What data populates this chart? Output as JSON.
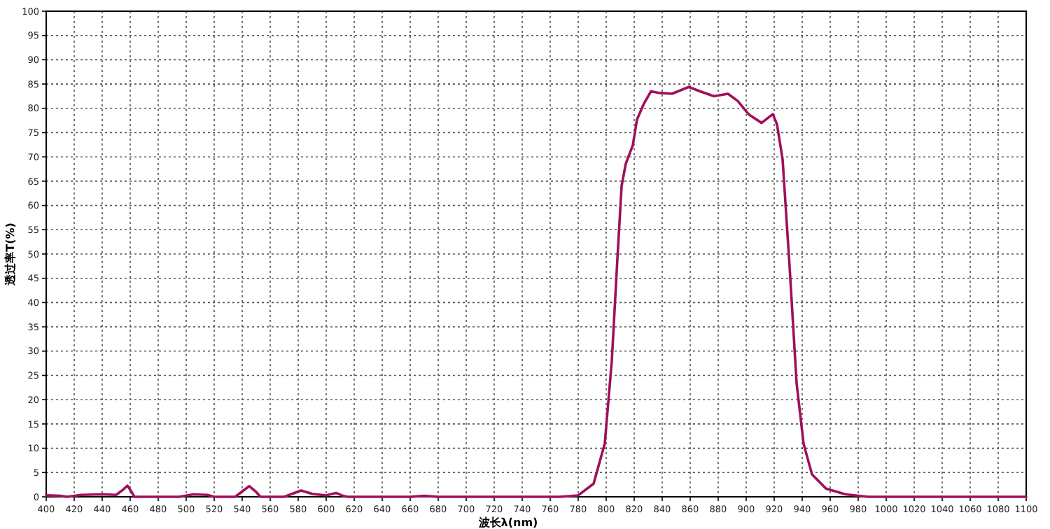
{
  "chart_data": {
    "type": "line",
    "xlabel": "波长λ(nm)",
    "ylabel": "透过率T(%)",
    "xlim": [
      400,
      1100
    ],
    "ylim": [
      0,
      100
    ],
    "xticks": [
      400,
      420,
      440,
      460,
      480,
      500,
      520,
      540,
      560,
      580,
      600,
      620,
      640,
      660,
      680,
      700,
      720,
      740,
      760,
      780,
      800,
      820,
      840,
      860,
      880,
      900,
      920,
      940,
      960,
      980,
      1000,
      1020,
      1040,
      1060,
      1080,
      1100
    ],
    "yticks": [
      0,
      5,
      10,
      15,
      20,
      25,
      30,
      35,
      40,
      45,
      50,
      55,
      60,
      65,
      70,
      75,
      80,
      85,
      90,
      95,
      100
    ],
    "grid": true,
    "marker": "none",
    "line_style": "solid",
    "series": [
      {
        "color": "#a0105a",
        "x": [
          400,
          410,
          415,
          425,
          440,
          450,
          455,
          458,
          461,
          463,
          495,
          505,
          515,
          520,
          535,
          545,
          550,
          553,
          570,
          582,
          590,
          600,
          607,
          612,
          615,
          660,
          670,
          680,
          767,
          780,
          791,
          799,
          804,
          808,
          811,
          814,
          819,
          822,
          827,
          832,
          837,
          847,
          859,
          867,
          877,
          887,
          894,
          902,
          911,
          919,
          922,
          926,
          931,
          936,
          941,
          947,
          957,
          971,
          987,
          1100
        ],
        "values": [
          0.3,
          0.2,
          0,
          0.4,
          0.5,
          0.4,
          1.5,
          2.3,
          1,
          0,
          0,
          0.5,
          0.4,
          0,
          0,
          2.2,
          1,
          0,
          0,
          1.3,
          0.6,
          0.3,
          0.8,
          0.2,
          0,
          0,
          0.2,
          0,
          0,
          0.3,
          2.7,
          11,
          28,
          49,
          64,
          68.6,
          72.4,
          77.7,
          81,
          83.5,
          83.2,
          83,
          84.4,
          83.5,
          82.5,
          83,
          81.5,
          78.7,
          77,
          78.8,
          76.7,
          69.5,
          47.4,
          23.4,
          10.9,
          4.6,
          1.7,
          0.5,
          0,
          0
        ]
      }
    ]
  }
}
